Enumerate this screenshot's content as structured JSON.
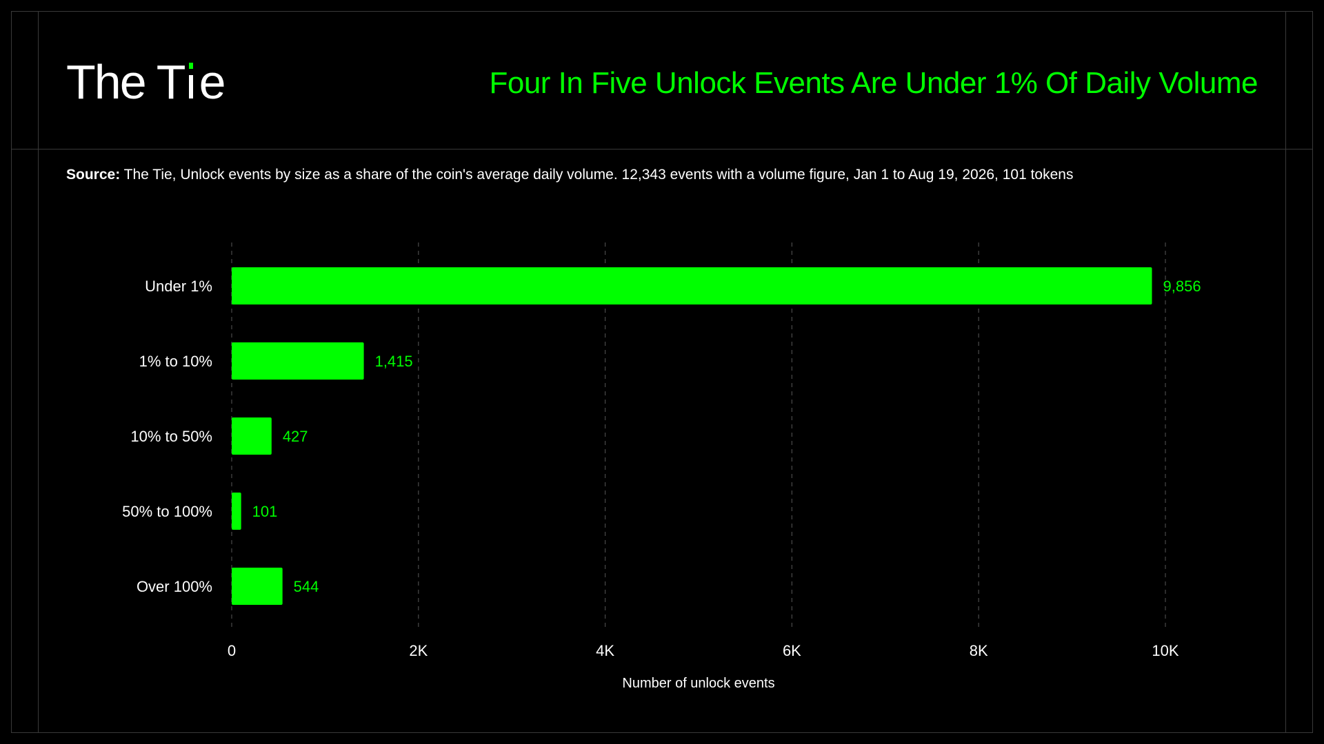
{
  "brand": {
    "logo_part1": "The T",
    "logo_part2": "e"
  },
  "header": {
    "title": "Four In Five Unlock Events Are Under 1% Of Daily Volume"
  },
  "source": {
    "label": "Source:",
    "text": " The Tie, Unlock events by size as a share of the coin's average daily volume. 12,343 events with a volume figure, Jan 1 to Aug 19, 2026, 101 tokens"
  },
  "colors": {
    "accent": "#00ff00",
    "background": "#000000",
    "text": "#ffffff",
    "grid": "#4a4a4a",
    "frame": "#3a3a3a"
  },
  "icons": {
    "logo_mark": "tie-logo-tick-icon"
  },
  "chart_data": {
    "type": "bar",
    "orientation": "horizontal",
    "categories": [
      "Under 1%",
      "1% to 10%",
      "10% to 50%",
      "50% to 100%",
      "Over 100%"
    ],
    "values": [
      9856,
      1415,
      427,
      101,
      544
    ],
    "value_labels": [
      "9,856",
      "1,415",
      "427",
      "101",
      "544"
    ],
    "xlabel": "Number of unlock events",
    "ylabel": "",
    "xlim": [
      0,
      10000
    ],
    "xticks": [
      0,
      2000,
      4000,
      6000,
      8000,
      10000
    ],
    "xtick_labels": [
      "0",
      "2K",
      "4K",
      "6K",
      "8K",
      "10K"
    ],
    "grid": "vertical-dashed",
    "bar_color": "#00ff00",
    "value_label_color": "#00ff00"
  }
}
